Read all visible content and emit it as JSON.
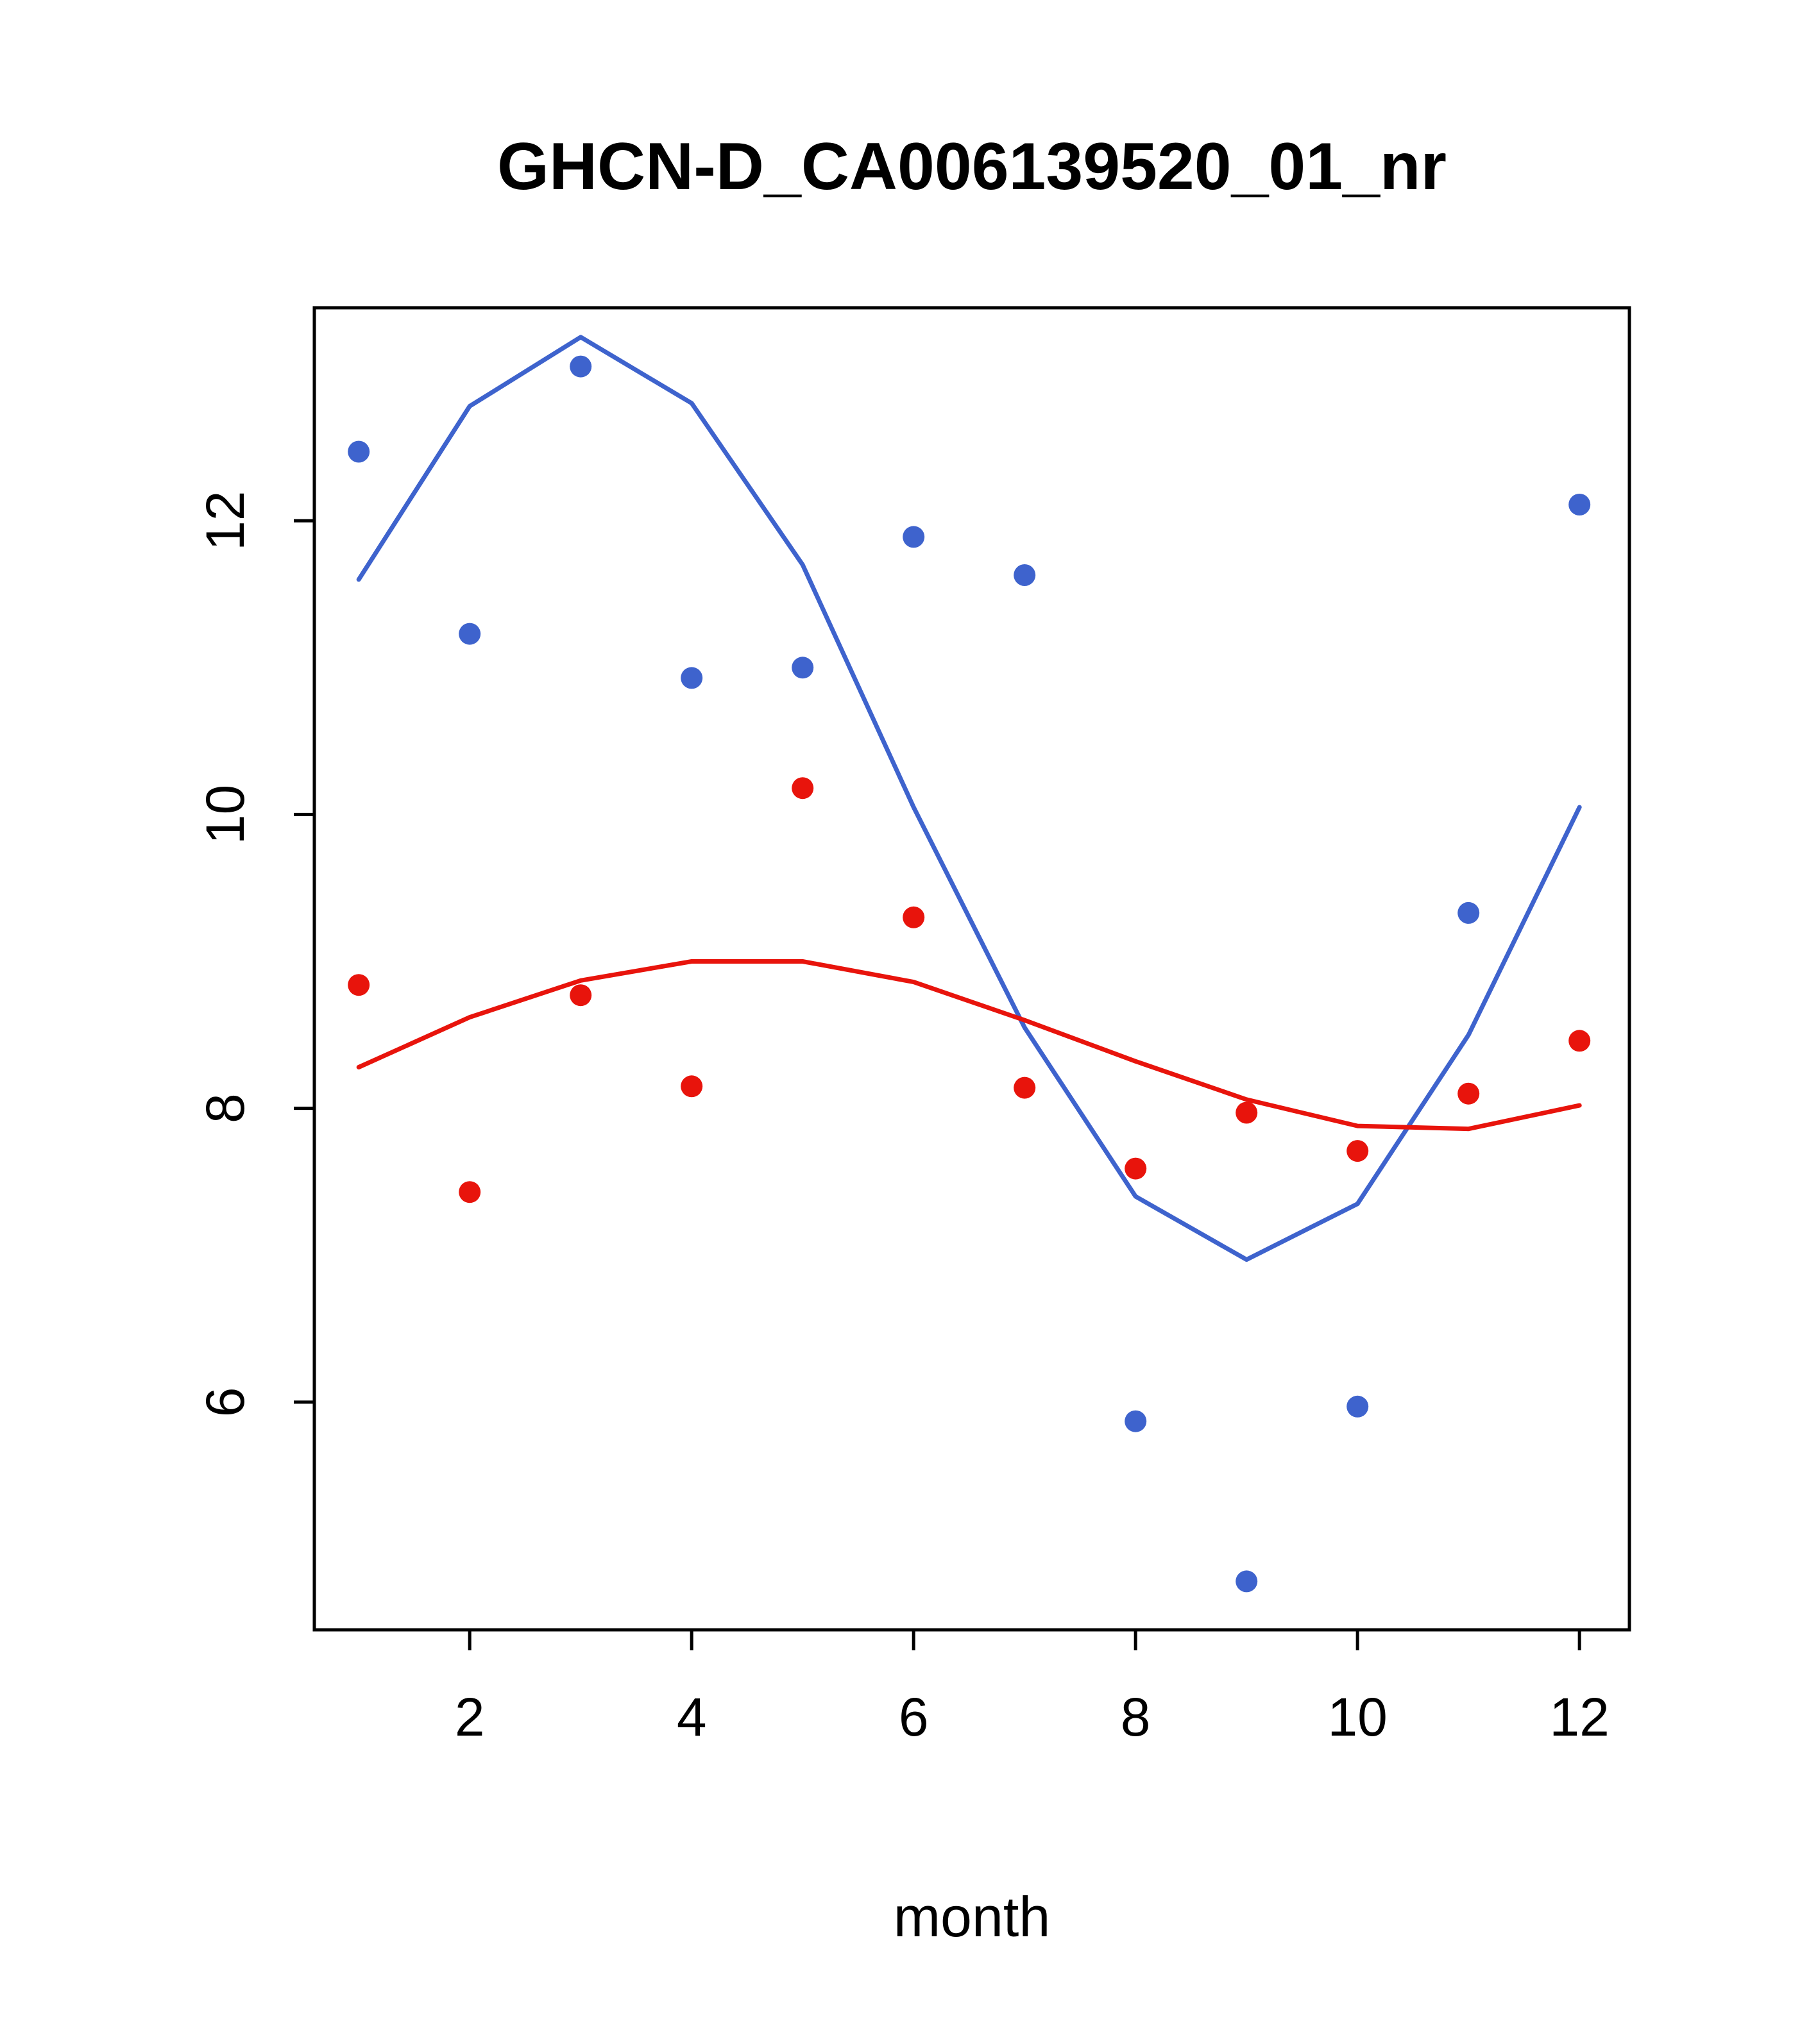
{
  "chart_data": {
    "type": "scatter",
    "title": "GHCN-D_CA006139520_01_nr",
    "xlabel": "month",
    "ylabel": "",
    "x": [
      1,
      2,
      3,
      4,
      5,
      6,
      7,
      8,
      9,
      10,
      11,
      12
    ],
    "xticks": [
      2,
      4,
      6,
      8,
      10,
      12
    ],
    "yticks": [
      6,
      8,
      10,
      12
    ],
    "xlim": [
      0.6,
      12.45
    ],
    "ylim": [
      4.45,
      13.45
    ],
    "grid": false,
    "legend": "none",
    "colors": {
      "blue": "#3E63CD",
      "red": "#E8140C"
    },
    "series": [
      {
        "name": "blue-points",
        "kind": "points",
        "color": "#3E63CD",
        "values": [
          12.47,
          11.23,
          13.05,
          10.93,
          11.0,
          11.89,
          11.63,
          5.87,
          4.78,
          5.97,
          9.33,
          12.11
        ]
      },
      {
        "name": "red-points",
        "kind": "points",
        "color": "#E8140C",
        "values": [
          8.84,
          7.43,
          8.77,
          8.15,
          10.18,
          9.3,
          8.14,
          7.59,
          7.97,
          7.71,
          8.1,
          8.46
        ]
      },
      {
        "name": "blue-smooth-line",
        "kind": "line",
        "color": "#3E63CD",
        "values": [
          11.6,
          12.78,
          13.25,
          12.8,
          11.7,
          10.05,
          8.55,
          7.4,
          6.97,
          7.35,
          8.5,
          10.05
        ]
      },
      {
        "name": "red-smooth-line",
        "kind": "line",
        "color": "#E8140C",
        "values": [
          8.28,
          8.62,
          8.87,
          9.0,
          9.0,
          8.86,
          8.6,
          8.32,
          8.06,
          7.88,
          7.86,
          8.02
        ]
      }
    ]
  }
}
